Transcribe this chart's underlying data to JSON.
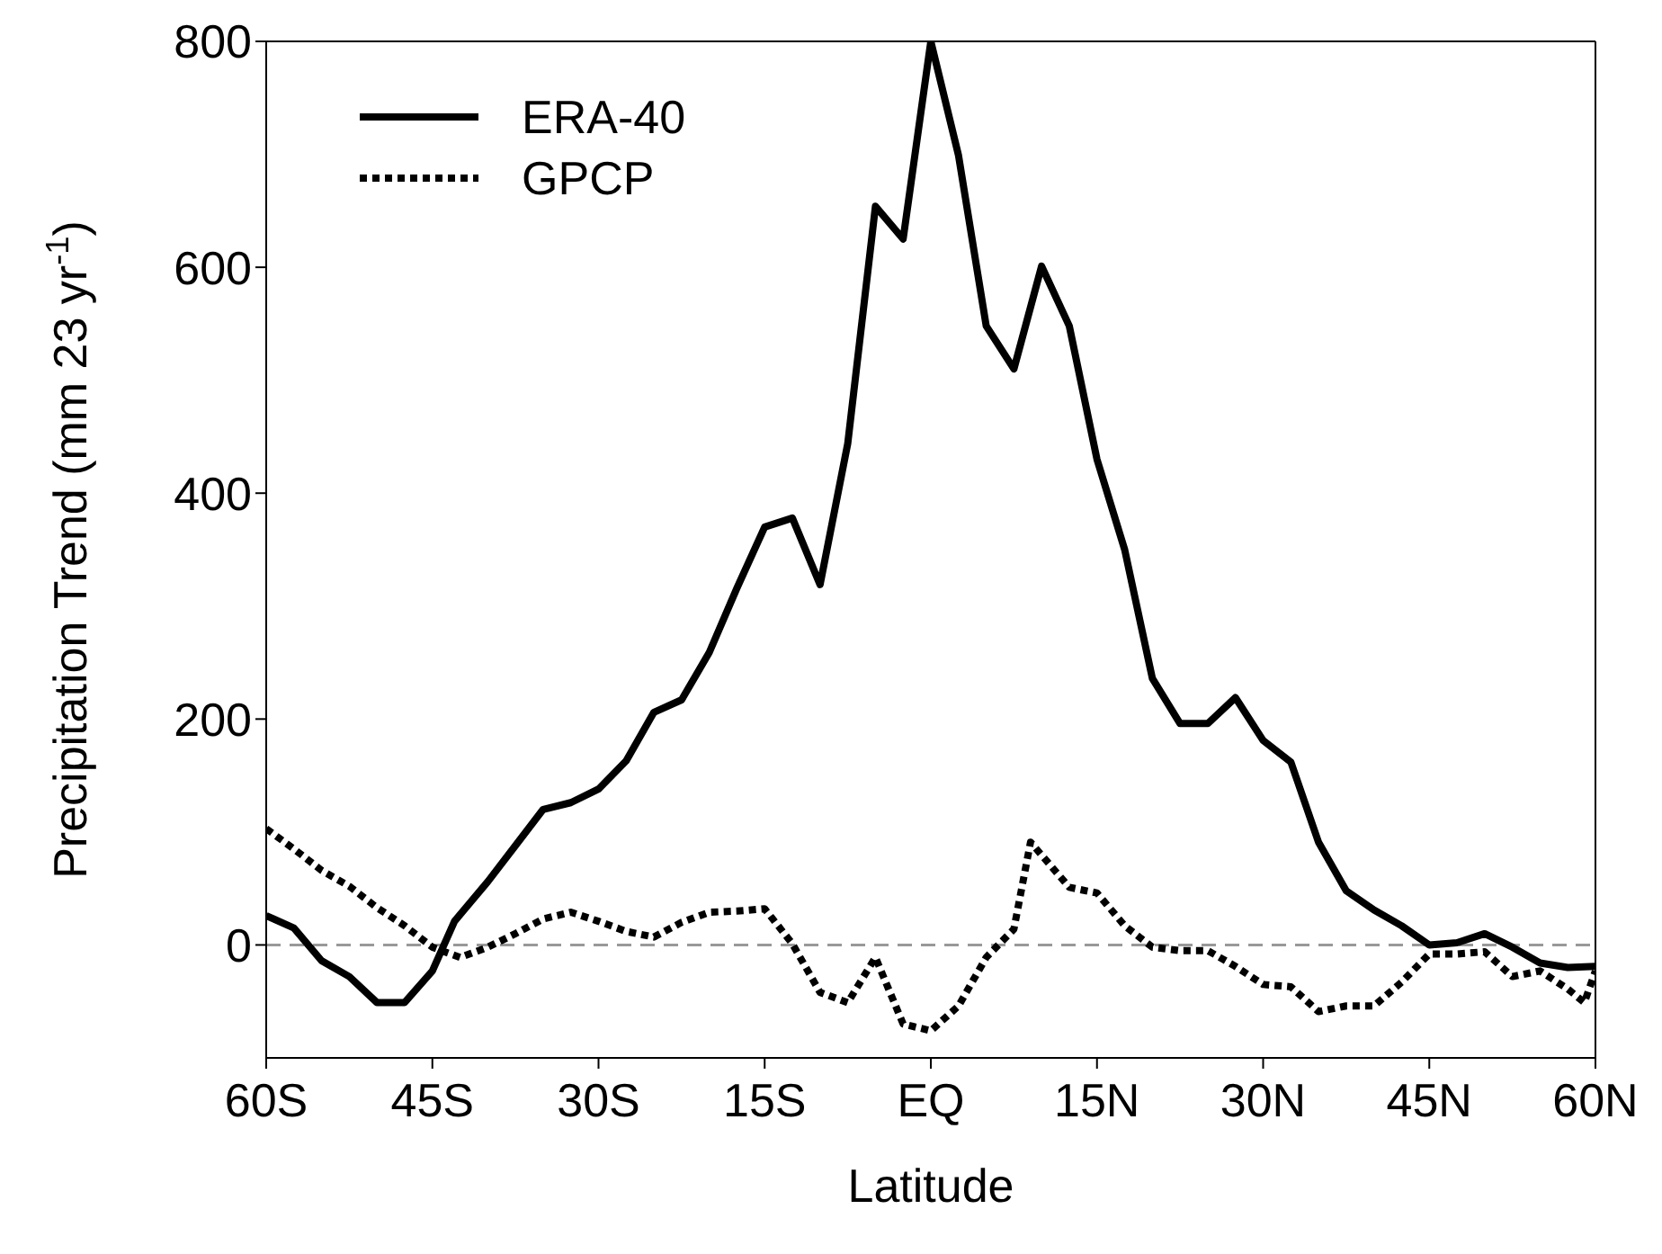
{
  "chart_data": {
    "type": "line",
    "xlabel": "Latitude",
    "ylabel": "Precipitation Trend (mm 23 yr$^{-1}$)",
    "xlim": [
      -60,
      60
    ],
    "xticks": [
      {
        "value": -60,
        "label": "60S"
      },
      {
        "value": -45,
        "label": "45S"
      },
      {
        "value": -30,
        "label": "30S"
      },
      {
        "value": -15,
        "label": "15S"
      },
      {
        "value": 0,
        "label": "EQ"
      },
      {
        "value": 15,
        "label": "15N"
      },
      {
        "value": 30,
        "label": "30N"
      },
      {
        "value": 45,
        "label": "45N"
      },
      {
        "value": 60,
        "label": "60N"
      }
    ],
    "ylim": [
      -100,
      800
    ],
    "yticks": [
      0,
      200,
      400,
      600,
      800
    ],
    "legend": "top left",
    "marker": "none",
    "ref_lines": [
      {
        "axis": "y",
        "value": 0,
        "color": "#999999",
        "line_style": "dashed"
      }
    ],
    "series": [
      {
        "name": "ERA-40",
        "color": "#000000",
        "line_style": "solid",
        "x": [
          -60,
          -57.5,
          -55,
          -52.5,
          -50,
          -47.5,
          -45,
          -43,
          -40,
          -37.5,
          -35,
          -32.5,
          -30,
          -27.5,
          -25,
          -22.5,
          -20,
          -17.5,
          -15,
          -12.5,
          -10,
          -7.5,
          -5,
          -2.5,
          0,
          2.5,
          5,
          7.5,
          10,
          12.5,
          15,
          17.5,
          20,
          22.5,
          25,
          27.5,
          30,
          32.5,
          35,
          37.5,
          40,
          42.5,
          45,
          47.5,
          50,
          52.5,
          55,
          57.5,
          60
        ],
        "values": [
          26,
          15,
          -14,
          -28,
          -51,
          -51,
          -23,
          21,
          56,
          88,
          120,
          126,
          138,
          163,
          206,
          217,
          259,
          316,
          370,
          378,
          319,
          444,
          654,
          625,
          800,
          699,
          548,
          510,
          601,
          548,
          430,
          350,
          236,
          196,
          196,
          219,
          181,
          162,
          91,
          48,
          31,
          17,
          0,
          2,
          10,
          -2,
          -16,
          -20,
          -19
        ]
      },
      {
        "name": "GPCP",
        "color": "#000000",
        "line_style": "dotted",
        "x": [
          -60,
          -57.5,
          -55,
          -52.5,
          -50,
          -47.5,
          -45,
          -42.5,
          -40,
          -37.5,
          -35,
          -32.5,
          -30,
          -27.5,
          -25,
          -22.5,
          -20,
          -17.5,
          -15,
          -12.5,
          -10,
          -7.5,
          -5,
          -2.5,
          0,
          2.5,
          5,
          7.5,
          9,
          12.5,
          15,
          17.5,
          20,
          22.5,
          25,
          27.5,
          30,
          32.5,
          35,
          37.5,
          40,
          42.5,
          45,
          47.5,
          50,
          52.5,
          55,
          57.5,
          59,
          60
        ],
        "values": [
          103,
          85,
          66,
          52,
          33,
          17,
          -2,
          -11,
          -2,
          10,
          23,
          29,
          21,
          12,
          7,
          20,
          29,
          30,
          32,
          1,
          -42,
          -51,
          -11,
          -70,
          -76,
          -54,
          -11,
          14,
          91,
          51,
          46,
          17,
          -2,
          -5,
          -5,
          -19,
          -35,
          -37,
          -59,
          -54,
          -54,
          -33,
          -8,
          -8,
          -6,
          -28,
          -23,
          -39,
          -51,
          -23
        ]
      }
    ]
  }
}
